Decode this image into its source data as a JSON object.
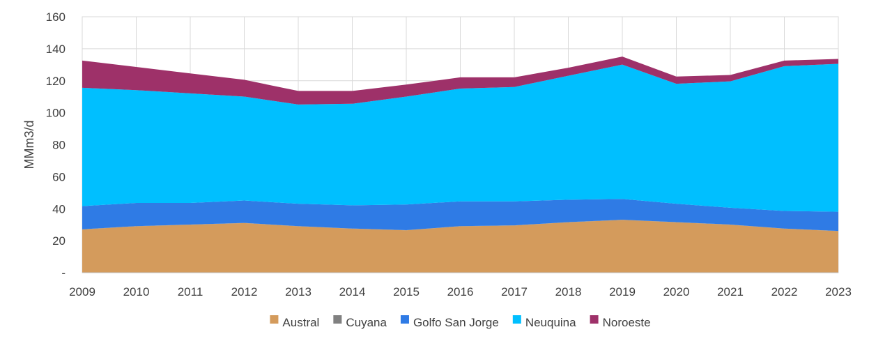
{
  "chart_data": {
    "type": "area",
    "stacked": true,
    "x": [
      2009,
      2010,
      2011,
      2012,
      2013,
      2014,
      2015,
      2016,
      2017,
      2018,
      2019,
      2020,
      2021,
      2022,
      2023
    ],
    "ylabel": "MMm3/d",
    "ylim": [
      0,
      160
    ],
    "yticks": [
      {
        "value": 0,
        "label": "-"
      },
      {
        "value": 20,
        "label": "20"
      },
      {
        "value": 40,
        "label": "40"
      },
      {
        "value": 60,
        "label": "60"
      },
      {
        "value": 80,
        "label": "80"
      },
      {
        "value": 100,
        "label": "100"
      },
      {
        "value": 120,
        "label": "120"
      },
      {
        "value": 140,
        "label": "140"
      },
      {
        "value": 160,
        "label": "160"
      }
    ],
    "grid": true,
    "legend_position": "bottom",
    "series": [
      {
        "name": "Austral",
        "color": "#D49B5C",
        "values": [
          27,
          29,
          30,
          31,
          29,
          27.5,
          26.5,
          29,
          29.5,
          31.5,
          33,
          31.5,
          30,
          27.5,
          26
        ]
      },
      {
        "name": "Cuyana",
        "color": "#808080",
        "values": [
          0.1,
          0.1,
          0.1,
          0.1,
          0.1,
          0.1,
          0.1,
          0.1,
          0.1,
          0.1,
          0.1,
          0.1,
          0.1,
          0.1,
          0.1
        ]
      },
      {
        "name": "Golfo San Jorge",
        "color": "#2F7BE5",
        "values": [
          14.5,
          14.5,
          13.5,
          14,
          14,
          14.5,
          16,
          15.5,
          15,
          14,
          13,
          11.5,
          10.5,
          11,
          12
        ]
      },
      {
        "name": "Neuquina",
        "color": "#00BFFF",
        "values": [
          74,
          70.5,
          68.5,
          65,
          62,
          63.5,
          67.5,
          70.5,
          71.5,
          77.5,
          84,
          75,
          79,
          90.5,
          92.5
        ]
      },
      {
        "name": "Noroeste",
        "color": "#9E3169",
        "values": [
          17,
          14.5,
          12.5,
          10.5,
          8.5,
          8,
          7.5,
          7,
          6,
          5,
          5,
          4.5,
          4,
          3.5,
          3
        ]
      }
    ]
  }
}
